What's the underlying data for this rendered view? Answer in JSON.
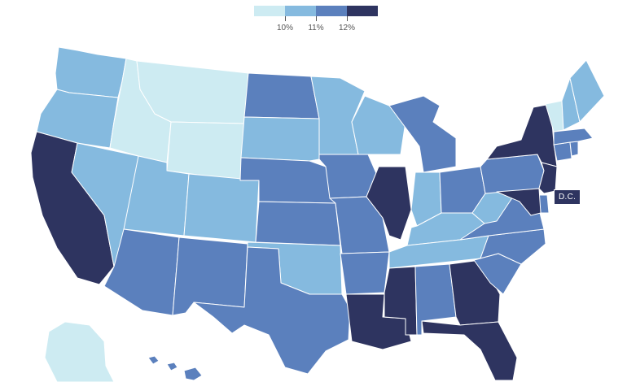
{
  "legend": {
    "colors": [
      "#cdebf2",
      "#85badf",
      "#5b80bd",
      "#2e3460"
    ],
    "labels": [
      "10%",
      "11%",
      "12%"
    ]
  },
  "dc_label": "D.C.",
  "color_levels": {
    "lowest": "#cdebf2",
    "low": "#85badf",
    "mid": "#5b80bd",
    "high": "#2e3460"
  },
  "states": [
    {
      "name": "Washington",
      "level": 1
    },
    {
      "name": "Oregon",
      "level": 1
    },
    {
      "name": "California",
      "level": 3
    },
    {
      "name": "Nevada",
      "level": 1
    },
    {
      "name": "Idaho",
      "level": 0
    },
    {
      "name": "Montana",
      "level": 0
    },
    {
      "name": "Wyoming",
      "level": 0
    },
    {
      "name": "Utah",
      "level": 1
    },
    {
      "name": "Colorado",
      "level": 1
    },
    {
      "name": "Arizona",
      "level": 2
    },
    {
      "name": "New Mexico",
      "level": 2
    },
    {
      "name": "North Dakota",
      "level": 2
    },
    {
      "name": "South Dakota",
      "level": 1
    },
    {
      "name": "Nebraska",
      "level": 2
    },
    {
      "name": "Kansas",
      "level": 2
    },
    {
      "name": "Oklahoma",
      "level": 1
    },
    {
      "name": "Texas",
      "level": 2
    },
    {
      "name": "Minnesota",
      "level": 1
    },
    {
      "name": "Iowa",
      "level": 2
    },
    {
      "name": "Missouri",
      "level": 2
    },
    {
      "name": "Arkansas",
      "level": 2
    },
    {
      "name": "Louisiana",
      "level": 3
    },
    {
      "name": "Wisconsin",
      "level": 1
    },
    {
      "name": "Illinois",
      "level": 3
    },
    {
      "name": "Michigan",
      "level": 2
    },
    {
      "name": "Indiana",
      "level": 1
    },
    {
      "name": "Ohio",
      "level": 2
    },
    {
      "name": "Kentucky",
      "level": 1
    },
    {
      "name": "Tennessee",
      "level": 1
    },
    {
      "name": "Mississippi",
      "level": 3
    },
    {
      "name": "Alabama",
      "level": 2
    },
    {
      "name": "Georgia",
      "level": 3
    },
    {
      "name": "Florida",
      "level": 3
    },
    {
      "name": "South Carolina",
      "level": 2
    },
    {
      "name": "North Carolina",
      "level": 2
    },
    {
      "name": "Virginia",
      "level": 2
    },
    {
      "name": "West Virginia",
      "level": 1
    },
    {
      "name": "Pennsylvania",
      "level": 2
    },
    {
      "name": "New York",
      "level": 3
    },
    {
      "name": "New Jersey",
      "level": 3
    },
    {
      "name": "Delaware",
      "level": 2
    },
    {
      "name": "Maryland",
      "level": 3
    },
    {
      "name": "Connecticut",
      "level": 2
    },
    {
      "name": "Rhode Island",
      "level": 2
    },
    {
      "name": "Massachusetts",
      "level": 2
    },
    {
      "name": "Vermont",
      "level": 0
    },
    {
      "name": "New Hampshire",
      "level": 1
    },
    {
      "name": "Maine",
      "level": 1
    },
    {
      "name": "Alaska",
      "level": 0
    },
    {
      "name": "Hawaii",
      "level": 2
    }
  ]
}
